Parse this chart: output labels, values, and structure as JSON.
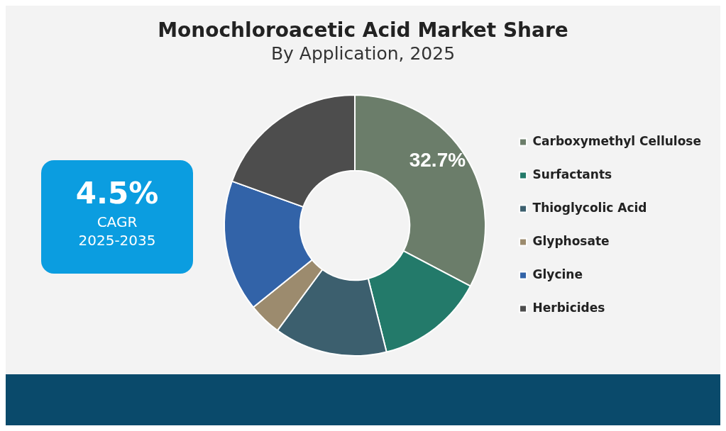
{
  "chart_data": {
    "type": "donut",
    "title": "Monochloroacetic Acid Market Share",
    "subtitle": "By Application, 2025",
    "categories": [
      "Carboxymethyl Cellulose",
      "Surfactants",
      "Thioglycolic Acid",
      "Glyphosate",
      "Glycine",
      "Herbicides"
    ],
    "values": [
      32.7,
      13.4,
      14.0,
      4.1,
      16.3,
      19.5
    ],
    "colors": [
      "#6b7d6a",
      "#237a6a",
      "#3c5f6e",
      "#9c8b6e",
      "#3263a8",
      "#4d4d4d"
    ],
    "value_labels": [
      "32.7%",
      null,
      null,
      null,
      null,
      null
    ],
    "annotations": [
      "4.5%",
      "CAGR",
      "2025-2035"
    ],
    "legend": "right"
  }
}
